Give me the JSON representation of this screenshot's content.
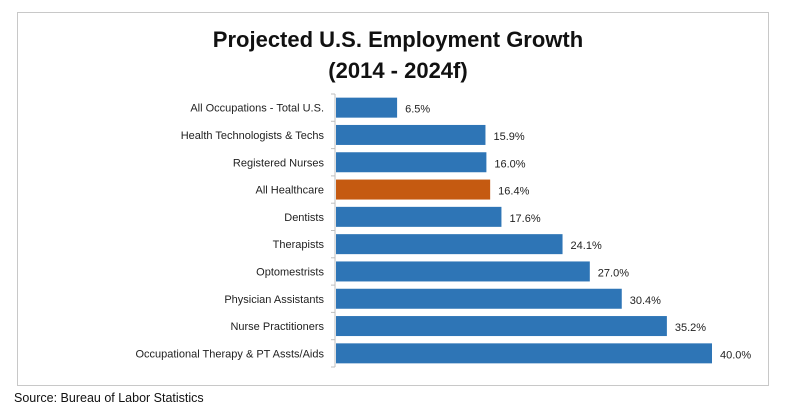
{
  "chart_data": {
    "type": "bar",
    "orientation": "horizontal",
    "title": "Projected U.S. Employment Growth",
    "subtitle": "(2014 - 2024f)",
    "categories": [
      "All Occupations - Total U.S.",
      "Health Technologists & Techs",
      "Registered Nurses",
      "All Healthcare",
      "Dentists",
      "Therapists",
      "Optomestrists",
      "Physician Assistants",
      "Nurse Practitioners",
      "Occupational Therapy & PT Assts/Aids"
    ],
    "values": [
      6.5,
      15.9,
      16.0,
      16.4,
      17.6,
      24.1,
      27.0,
      30.4,
      35.2,
      40.0
    ],
    "labels": [
      "6.5%",
      "15.9%",
      "16.0%",
      "16.4%",
      "17.6%",
      "24.1%",
      "27.0%",
      "30.4%",
      "35.2%",
      "40.0%"
    ],
    "xlim": [
      0,
      40
    ],
    "grid": false,
    "legend": "none",
    "colors": {
      "default": "#2e75b6",
      "highlight": "#c55a11"
    },
    "highlight_index": 3
  },
  "source": "Source: Bureau of Labor Statistics"
}
